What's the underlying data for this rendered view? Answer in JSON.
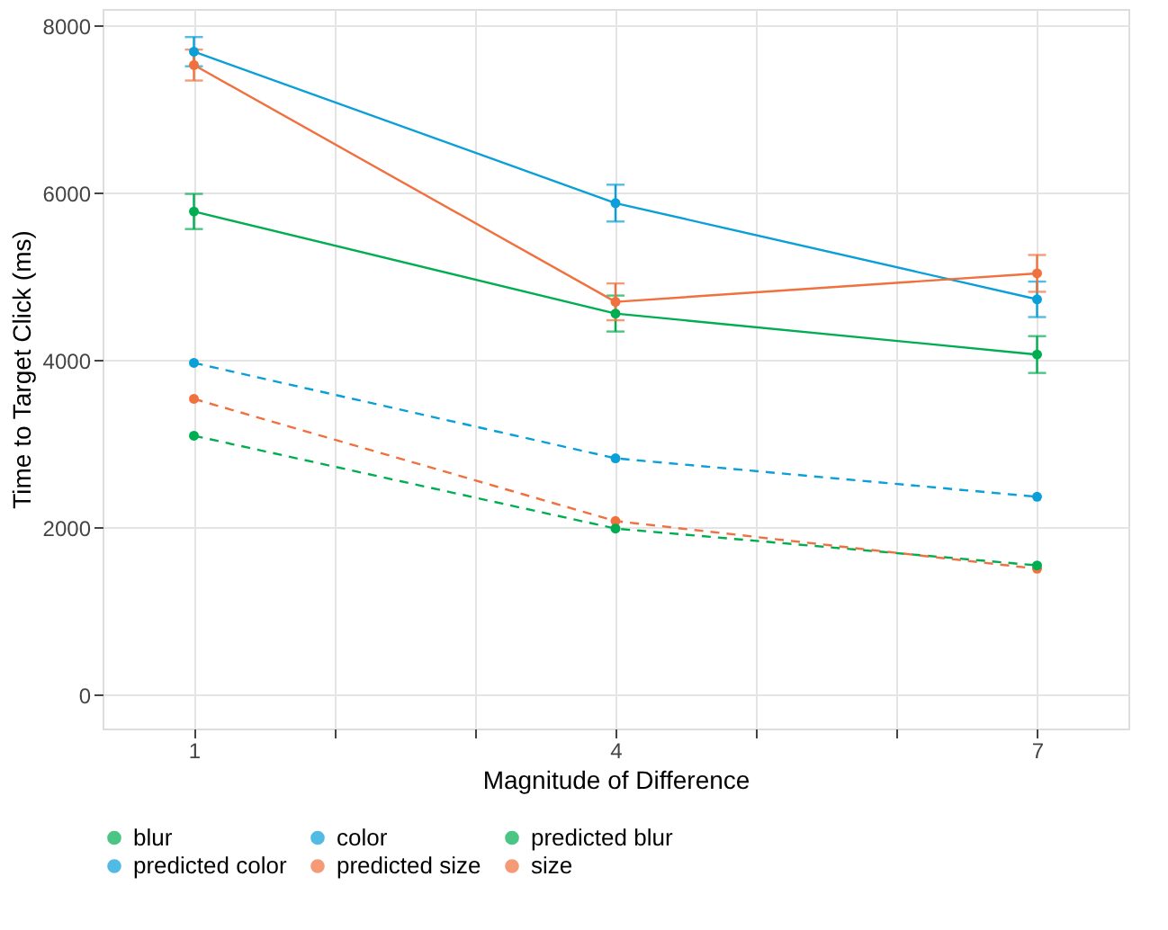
{
  "chart_data": {
    "type": "line",
    "xlabel": "Magnitude of Difference",
    "ylabel": "Time to Target Click (ms)",
    "x": [
      1,
      4,
      7
    ],
    "xlim": [
      0.35,
      7.65
    ],
    "ylim": [
      -400,
      8200
    ],
    "xticks": [
      1,
      {
        "value": 2,
        "label": null
      },
      {
        "value": 3,
        "label": null
      },
      4,
      {
        "value": 5,
        "label": null
      },
      {
        "value": 6,
        "label": null
      },
      7
    ],
    "yticks": [
      0,
      2000,
      4000,
      6000,
      8000
    ],
    "grid": true,
    "legend": "bottom",
    "marker": "circle",
    "series": [
      {
        "name": "blur",
        "color": "#00ad50",
        "values": [
          5780,
          4560,
          4070
        ],
        "errors": [
          210,
          215,
          220
        ],
        "line_style": "solid"
      },
      {
        "name": "color",
        "color": "#0a9fd8",
        "values": [
          7690,
          5880,
          4730
        ],
        "errors": [
          175,
          220,
          212
        ],
        "line_style": "solid"
      },
      {
        "name": "predicted blur",
        "color": "#00ad50",
        "values": [
          3100,
          1990,
          1550
        ],
        "line_style": "dashed"
      },
      {
        "name": "predicted color",
        "color": "#0a9fd8",
        "values": [
          3970,
          2830,
          2370
        ],
        "line_style": "dashed"
      },
      {
        "name": "predicted size",
        "color": "#f0703e",
        "values": [
          3540,
          2080,
          1510
        ],
        "line_style": "dashed"
      },
      {
        "name": "size",
        "color": "#f0703e",
        "values": [
          7530,
          4700,
          5040
        ],
        "errors": [
          185,
          220,
          220
        ],
        "line_style": "solid"
      }
    ]
  }
}
